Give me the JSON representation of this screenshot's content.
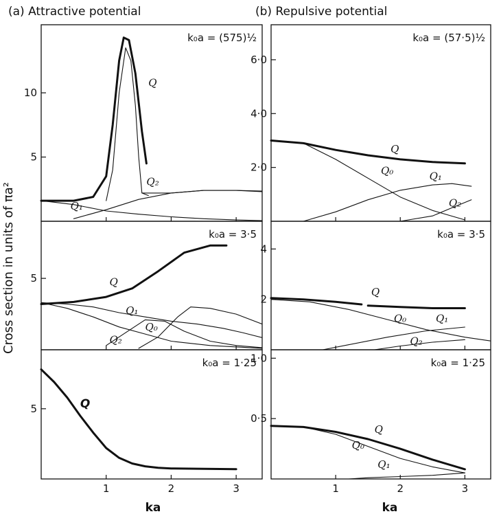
{
  "ylabel": "Cross section in units of πa²",
  "chart_data": [
    {
      "id": "a1",
      "type": "line",
      "title": "(a) Attractive potential",
      "param": "k₀a = (575)½",
      "xlim": [
        0,
        3.4
      ],
      "ylim": [
        0,
        15.3
      ],
      "yticks": [
        {
          "v": 5,
          "label": "5"
        },
        {
          "v": 10,
          "label": "10"
        }
      ],
      "series": [
        {
          "name": "Q",
          "values": [
            [
              0,
              1.6
            ],
            [
              0.5,
              1.6
            ],
            [
              0.8,
              1.9
            ],
            [
              1.0,
              3.5
            ],
            [
              1.1,
              7.5
            ],
            [
              1.2,
              12.5
            ],
            [
              1.27,
              14.3
            ],
            [
              1.35,
              14.1
            ],
            [
              1.45,
              11.5
            ],
            [
              1.55,
              7.0
            ],
            [
              1.62,
              4.5
            ]
          ]
        },
        {
          "name": "",
          "values": [
            [
              1.0,
              1.6
            ],
            [
              1.1,
              4.0
            ],
            [
              1.2,
              10.0
            ],
            [
              1.3,
              13.5
            ],
            [
              1.38,
              12.5
            ],
            [
              1.45,
              9.0
            ],
            [
              1.5,
              5.0
            ],
            [
              1.55,
              2.2
            ],
            [
              1.65,
              2.0
            ]
          ]
        },
        {
          "name": "Q₂",
          "values": [
            [
              0.5,
              0.2
            ],
            [
              1.0,
              0.9
            ],
            [
              1.5,
              1.7
            ],
            [
              2.0,
              2.2
            ],
            [
              2.5,
              2.4
            ],
            [
              3.0,
              2.4
            ],
            [
              3.4,
              2.3
            ]
          ]
        },
        {
          "name": "Q₁",
          "values": [
            [
              0,
              1.6
            ],
            [
              0.5,
              1.3
            ],
            [
              1.0,
              0.8
            ],
            [
              1.5,
              0.55
            ],
            [
              2.0,
              0.35
            ],
            [
              2.5,
              0.2
            ],
            [
              3.0,
              0.1
            ],
            [
              3.4,
              0.05
            ]
          ]
        },
        {
          "name": "",
          "values": [
            [
              1.55,
              2.2
            ],
            [
              2.0,
              2.2
            ],
            [
              2.5,
              2.4
            ],
            [
              3.0,
              2.4
            ],
            [
              3.4,
              2.35
            ]
          ]
        }
      ],
      "labels": [
        {
          "text": "Q",
          "x": 1.65,
          "y": 10.5,
          "cls": "lbl"
        },
        {
          "text": "Q₂",
          "x": 1.62,
          "y": 2.8,
          "cls": "lbl"
        },
        {
          "text": "Q₁",
          "x": 0.45,
          "y": 0.9,
          "cls": "lbl"
        }
      ]
    },
    {
      "id": "b1",
      "type": "line",
      "title": "(b) Repulsive potential",
      "param": "k₀a = (57·5)½",
      "xlim": [
        0,
        3.4
      ],
      "ylim": [
        0,
        7.3
      ],
      "yticks": [
        {
          "v": 2,
          "label": "2·0"
        },
        {
          "v": 4,
          "label": "4·0"
        },
        {
          "v": 6,
          "label": "6·0"
        }
      ],
      "series": [
        {
          "name": "Q",
          "values": [
            [
              0,
              3.0
            ],
            [
              0.5,
              2.9
            ],
            [
              1.0,
              2.65
            ],
            [
              1.5,
              2.45
            ],
            [
              2.0,
              2.3
            ],
            [
              2.5,
              2.2
            ],
            [
              3.0,
              2.15
            ]
          ]
        },
        {
          "name": "Q₀",
          "values": [
            [
              0,
              3.0
            ],
            [
              0.5,
              2.9
            ],
            [
              1.0,
              2.3
            ],
            [
              1.5,
              1.6
            ],
            [
              2.0,
              0.9
            ],
            [
              2.5,
              0.4
            ],
            [
              3.0,
              0.05
            ]
          ]
        },
        {
          "name": "Q₁",
          "values": [
            [
              0.5,
              0.0
            ],
            [
              1.0,
              0.35
            ],
            [
              1.5,
              0.8
            ],
            [
              2.0,
              1.15
            ],
            [
              2.5,
              1.35
            ],
            [
              2.8,
              1.4
            ],
            [
              3.1,
              1.3
            ]
          ]
        },
        {
          "name": "Q₂",
          "values": [
            [
              2.0,
              0.0
            ],
            [
              2.5,
              0.2
            ],
            [
              2.8,
              0.5
            ],
            [
              3.1,
              0.8
            ]
          ]
        }
      ],
      "labels": [
        {
          "text": "Q",
          "x": 1.85,
          "y": 2.55,
          "cls": "lbl"
        },
        {
          "text": "Q₀",
          "x": 1.7,
          "y": 1.75,
          "cls": "lbl"
        },
        {
          "text": "Q₁",
          "x": 2.45,
          "y": 1.55,
          "cls": "lbl"
        },
        {
          "text": "Q₂",
          "x": 2.75,
          "y": 0.55,
          "cls": "lbl"
        }
      ]
    },
    {
      "id": "a2",
      "type": "line",
      "title": "",
      "param": "k₀a = 3·5",
      "xlim": [
        0,
        3.4
      ],
      "ylim": [
        0,
        9.0
      ],
      "yticks": [
        {
          "v": 5,
          "label": "5"
        }
      ],
      "series": [
        {
          "name": "Q",
          "values": [
            [
              0,
              3.2
            ],
            [
              0.5,
              3.35
            ],
            [
              1.0,
              3.7
            ],
            [
              1.4,
              4.3
            ],
            [
              1.8,
              5.5
            ],
            [
              2.2,
              6.8
            ],
            [
              2.6,
              7.3
            ],
            [
              2.85,
              7.3
            ]
          ]
        },
        {
          "name": "",
          "values": [
            [
              0,
              3.3
            ],
            [
              0.4,
              3.2
            ],
            [
              0.8,
              3.0
            ],
            [
              1.2,
              2.6
            ],
            [
              1.6,
              2.3
            ],
            [
              2.0,
              2.0
            ],
            [
              2.4,
              1.8
            ],
            [
              2.8,
              1.5
            ],
            [
              3.1,
              1.2
            ],
            [
              3.4,
              0.85
            ]
          ]
        },
        {
          "name": "Q₁",
          "values": [
            [
              0,
              3.3
            ],
            [
              0.4,
              2.9
            ],
            [
              0.8,
              2.3
            ],
            [
              1.2,
              1.6
            ],
            [
              1.6,
              1.1
            ],
            [
              2.0,
              0.6
            ],
            [
              2.6,
              0.3
            ],
            [
              3.4,
              0.1
            ]
          ]
        },
        {
          "name": "Q₀",
          "values": [
            [
              1.0,
              0.3
            ],
            [
              1.3,
              1.2
            ],
            [
              1.6,
              2.1
            ],
            [
              1.9,
              2.0
            ],
            [
              2.2,
              1.3
            ],
            [
              2.6,
              0.6
            ],
            [
              3.0,
              0.3
            ],
            [
              3.4,
              0.15
            ]
          ]
        },
        {
          "name": "Q₂",
          "values": [
            [
              1.5,
              0.1
            ],
            [
              1.8,
              0.9
            ],
            [
              2.1,
              2.3
            ],
            [
              2.3,
              3.0
            ],
            [
              2.6,
              2.9
            ],
            [
              3.0,
              2.5
            ],
            [
              3.4,
              1.8
            ]
          ]
        }
      ],
      "labels": [
        {
          "text": "Q",
          "x": 1.05,
          "y": 4.5,
          "cls": "lbl"
        },
        {
          "text": "Q₁",
          "x": 1.3,
          "y": 2.5,
          "cls": "lbl"
        },
        {
          "text": "Q₀",
          "x": 1.6,
          "y": 1.35,
          "cls": "lbl"
        },
        {
          "text": "Q₂",
          "x": 1.05,
          "y": 0.45,
          "cls": "lbl"
        }
      ]
    },
    {
      "id": "b2",
      "type": "line",
      "title": "",
      "param": "k₀a = 3·5",
      "xlim": [
        0,
        3.4
      ],
      "ylim": [
        0,
        5.1
      ],
      "yticks": [
        {
          "v": 2,
          "label": "2"
        },
        {
          "v": 4,
          "label": "4"
        }
      ],
      "series": [
        {
          "name": "Q",
          "values": [
            [
              0,
              2.05
            ],
            [
              0.5,
              2.0
            ],
            [
              1.0,
              1.9
            ],
            [
              1.4,
              1.8
            ]
          ]
        },
        {
          "name": "",
          "values": [
            [
              1.5,
              1.75
            ],
            [
              2.0,
              1.7
            ],
            [
              2.5,
              1.65
            ],
            [
              3.0,
              1.65
            ]
          ]
        },
        {
          "name": "Q₀",
          "values": [
            [
              0,
              2.0
            ],
            [
              0.6,
              1.9
            ],
            [
              1.2,
              1.6
            ],
            [
              1.8,
              1.2
            ],
            [
              2.4,
              0.8
            ],
            [
              3.0,
              0.5
            ],
            [
              3.4,
              0.35
            ]
          ]
        },
        {
          "name": "Q₁",
          "values": [
            [
              0.8,
              0.0
            ],
            [
              1.2,
              0.2
            ],
            [
              1.8,
              0.5
            ],
            [
              2.4,
              0.75
            ],
            [
              3.0,
              0.9
            ]
          ]
        },
        {
          "name": "Q₂",
          "values": [
            [
              1.6,
              0.0
            ],
            [
              2.0,
              0.15
            ],
            [
              2.5,
              0.3
            ],
            [
              3.0,
              0.4
            ]
          ]
        }
      ],
      "labels": [
        {
          "text": "Q",
          "x": 1.55,
          "y": 2.15,
          "cls": "lbl"
        },
        {
          "text": "Q₀",
          "x": 1.9,
          "y": 1.1,
          "cls": "lbl"
        },
        {
          "text": "Q₁",
          "x": 2.55,
          "y": 1.1,
          "cls": "lbl"
        },
        {
          "text": "Q₂",
          "x": 2.15,
          "y": 0.2,
          "cls": "lbl"
        }
      ]
    },
    {
      "id": "a3",
      "type": "line",
      "title": "",
      "param": "k₀a = 1·25",
      "xlim": [
        0,
        3.4
      ],
      "ylim": [
        0,
        9.2
      ],
      "yticks": [
        {
          "v": 5,
          "label": "5"
        }
      ],
      "series": [
        {
          "name": "Q",
          "values": [
            [
              0,
              7.8
            ],
            [
              0.2,
              6.9
            ],
            [
              0.4,
              5.8
            ],
            [
              0.6,
              4.5
            ],
            [
              0.8,
              3.3
            ],
            [
              1.0,
              2.2
            ],
            [
              1.2,
              1.5
            ],
            [
              1.4,
              1.1
            ],
            [
              1.6,
              0.9
            ],
            [
              1.8,
              0.8
            ],
            [
              2.0,
              0.75
            ],
            [
              2.5,
              0.72
            ],
            [
              3.0,
              0.7
            ]
          ]
        }
      ],
      "labels": [
        {
          "text": "Q",
          "x": 0.6,
          "y": 5.1,
          "cls": "lbl-big"
        }
      ]
    },
    {
      "id": "b3",
      "type": "line",
      "title": "",
      "param": "k₀a = 1·25",
      "xlim": [
        0,
        3.4
      ],
      "ylim": [
        0,
        1.07
      ],
      "yticks": [
        {
          "v": 0.5,
          "label": "0·5"
        },
        {
          "v": 1.0,
          "label": "1·0"
        }
      ],
      "series": [
        {
          "name": "Q",
          "values": [
            [
              0,
              0.44
            ],
            [
              0.5,
              0.43
            ],
            [
              1.0,
              0.39
            ],
            [
              1.5,
              0.33
            ],
            [
              2.0,
              0.25
            ],
            [
              2.5,
              0.16
            ],
            [
              3.0,
              0.08
            ]
          ]
        },
        {
          "name": "Q₀",
          "values": [
            [
              0,
              0.44
            ],
            [
              0.5,
              0.43
            ],
            [
              1.0,
              0.37
            ],
            [
              1.5,
              0.27
            ],
            [
              2.0,
              0.17
            ],
            [
              2.5,
              0.1
            ],
            [
              3.0,
              0.05
            ]
          ]
        },
        {
          "name": "Q₁",
          "values": [
            [
              1.2,
              0.0
            ],
            [
              1.5,
              0.01
            ],
            [
              2.0,
              0.02
            ],
            [
              2.5,
              0.03
            ],
            [
              3.0,
              0.05
            ]
          ]
        }
      ],
      "labels": [
        {
          "text": "Q",
          "x": 1.6,
          "y": 0.38,
          "cls": "lbl"
        },
        {
          "text": "Q₀",
          "x": 1.25,
          "y": 0.25,
          "cls": "lbl"
        },
        {
          "text": "Q₁",
          "x": 1.65,
          "y": 0.09,
          "cls": "lbl"
        }
      ]
    }
  ],
  "xaxis": {
    "ticks": [
      {
        "v": 1,
        "label": "1"
      },
      {
        "v": 2,
        "label": "2"
      },
      {
        "v": 3,
        "label": "3"
      }
    ],
    "label": "ka"
  }
}
